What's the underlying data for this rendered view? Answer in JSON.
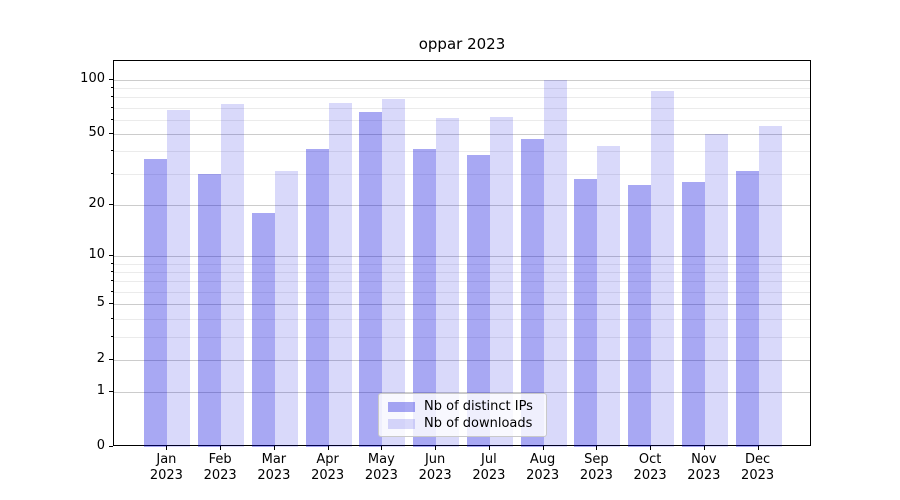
{
  "title": "oppar 2023",
  "chart_data": {
    "type": "bar",
    "title": "oppar 2023",
    "categories": [
      "Jan 2023",
      "Feb 2023",
      "Mar 2023",
      "Apr 2023",
      "May 2023",
      "Jun 2023",
      "Jul 2023",
      "Aug 2023",
      "Sep 2023",
      "Oct 2023",
      "Nov 2023",
      "Dec 2023"
    ],
    "series": [
      {
        "name": "Nb of distinct IPs",
        "color": "#0000dc",
        "alpha": 0.34,
        "values": [
          36,
          30,
          18,
          41,
          66,
          41,
          38,
          47,
          28,
          26,
          27,
          31
        ]
      },
      {
        "name": "Nb of downloads",
        "color": "#0000dc",
        "alpha": 0.15,
        "values": [
          68,
          73,
          31,
          74,
          78,
          61,
          62,
          100,
          43,
          86,
          50,
          55
        ]
      }
    ],
    "xlabel": "",
    "ylabel": "",
    "yscale": "log1p",
    "ylim": [
      0,
      100
    ],
    "yticks": [
      100,
      50,
      20,
      10,
      5,
      2,
      1,
      0
    ],
    "yminorticks": [
      3,
      4,
      6,
      7,
      8,
      9,
      30,
      40,
      60,
      70,
      80,
      90
    ],
    "grid": true,
    "legend_position": "lower center",
    "colors": {
      "grid_major": "#cccccc",
      "grid_minor": "#ebebeb",
      "spine": "#000000",
      "background": "#ffffff"
    }
  }
}
